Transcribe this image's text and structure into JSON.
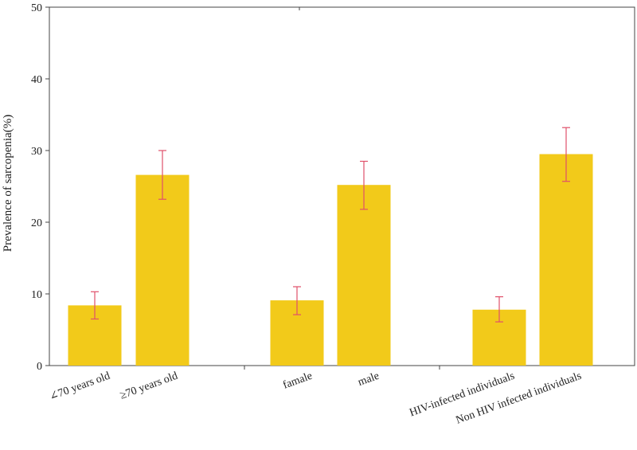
{
  "chart_data": {
    "type": "bar",
    "title": "",
    "xlabel": "",
    "ylabel": "Prevalence of sarcopenia(%)",
    "ylim": [
      0,
      50
    ],
    "yticks": [
      0,
      10,
      20,
      30,
      40,
      50
    ],
    "grid": false,
    "groups": [
      {
        "bars": [
          {
            "label": "∠70 years old",
            "value": 8.4,
            "err_low": 6.5,
            "err_high": 10.3
          },
          {
            "label": "≥70 years old",
            "value": 26.6,
            "err_low": 23.2,
            "err_high": 30.0
          }
        ]
      },
      {
        "bars": [
          {
            "label": "famale",
            "value": 9.1,
            "err_low": 7.1,
            "err_high": 11.0
          },
          {
            "label": "male",
            "value": 25.2,
            "err_low": 21.8,
            "err_high": 28.5
          }
        ]
      },
      {
        "bars": [
          {
            "label": "HIV-infected individuals",
            "value": 7.8,
            "err_low": 6.1,
            "err_high": 9.6
          },
          {
            "label": "Non HIV infected individuals",
            "value": 29.5,
            "err_low": 25.7,
            "err_high": 33.2
          }
        ]
      }
    ],
    "colors": {
      "bar": "#F2CA1A",
      "error": "#E0506A",
      "axis": "#444444"
    }
  }
}
